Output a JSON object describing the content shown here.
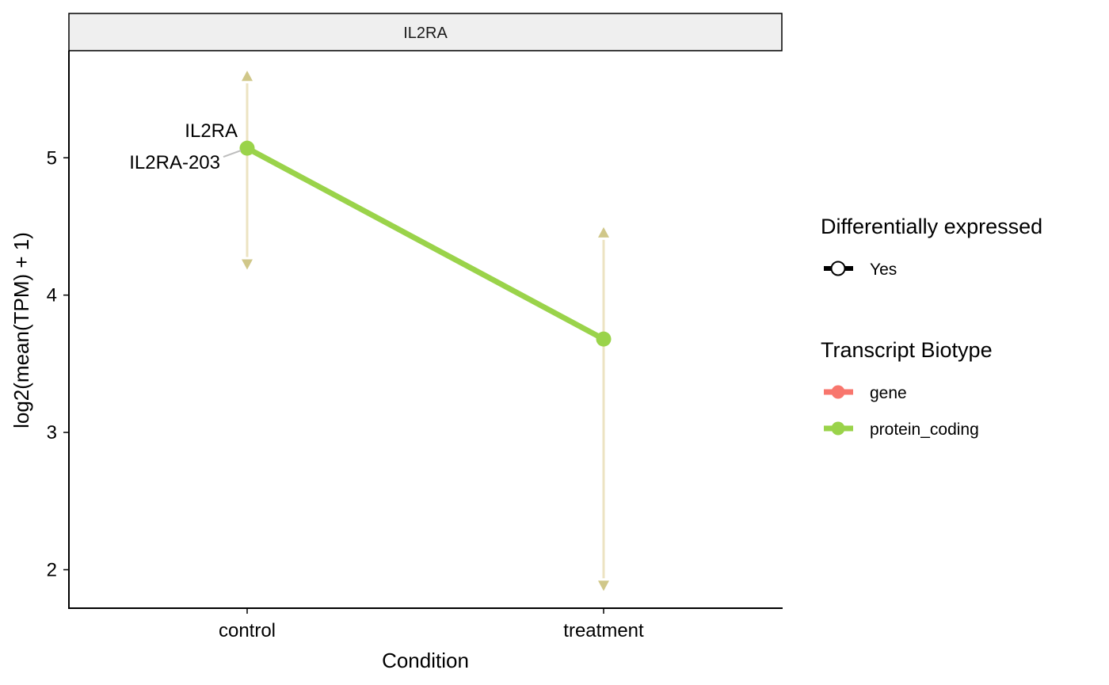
{
  "chart_data": {
    "type": "line",
    "facet": "IL2RA",
    "xlabel": "Condition",
    "ylabel": "log2(mean(TPM) + 1)",
    "categories": [
      "control",
      "treatment"
    ],
    "ylim": [
      1.72,
      5.78
    ],
    "yticks": [
      2,
      3,
      4,
      5
    ],
    "series": [
      {
        "name": "IL2RA-203",
        "biotype": "protein_coding",
        "color": "#9ad34a",
        "values": [
          5.07,
          3.68
        ],
        "error_low": [
          4.22,
          1.88
        ],
        "error_high": [
          5.6,
          4.46
        ],
        "error_color": "#c8bd74"
      }
    ],
    "point_labels": [
      {
        "text": "IL2RA",
        "category": "control",
        "series": 0
      },
      {
        "text": "IL2RA-203",
        "category": "control",
        "series": 0
      }
    ],
    "legends": [
      {
        "title": "Differentially expressed",
        "entries": [
          {
            "label": "Yes",
            "symbol": "open-circle"
          }
        ]
      },
      {
        "title": "Transcript Biotype",
        "entries": [
          {
            "label": "gene",
            "color": "#f8766d"
          },
          {
            "label": "protein_coding",
            "color": "#9ad34a"
          }
        ]
      }
    ],
    "legend_position": "right",
    "grid": false
  }
}
